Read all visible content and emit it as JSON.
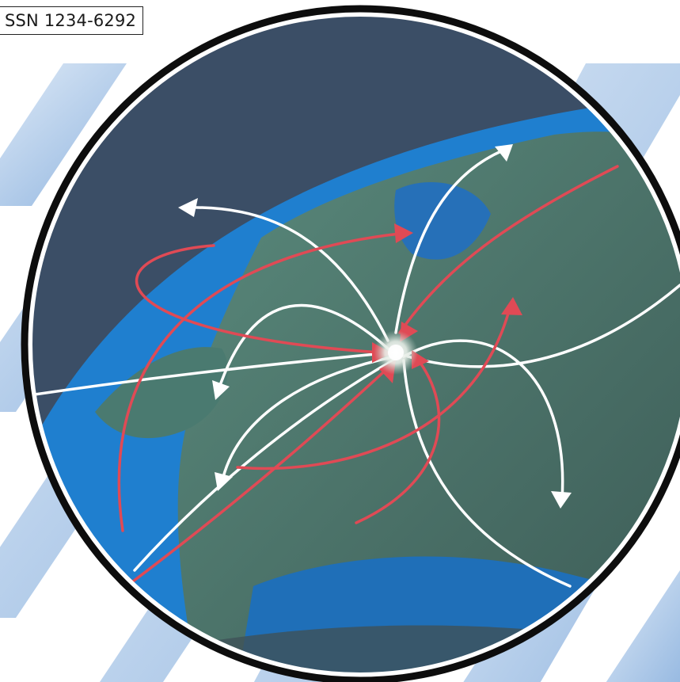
{
  "cover": {
    "issn": "SSN 1234-6292"
  },
  "colors": {
    "background": "#ffffff",
    "stripe_light": "#dde9f6",
    "stripe_dark": "#93b8e2",
    "space": "#3b4e66",
    "ocean": "#1f7fcf",
    "land": "#4f7b72",
    "ring_outer": "#0d0d0d",
    "ring_inner": "#ffffff",
    "arrow_white": "#ffffff",
    "arrow_red": "#e04a55",
    "hub_glow": "#f3f6f0"
  },
  "illustration": {
    "hub": "europe-hub-glow",
    "arrows": [
      "white-arrows",
      "red-arrows"
    ]
  }
}
